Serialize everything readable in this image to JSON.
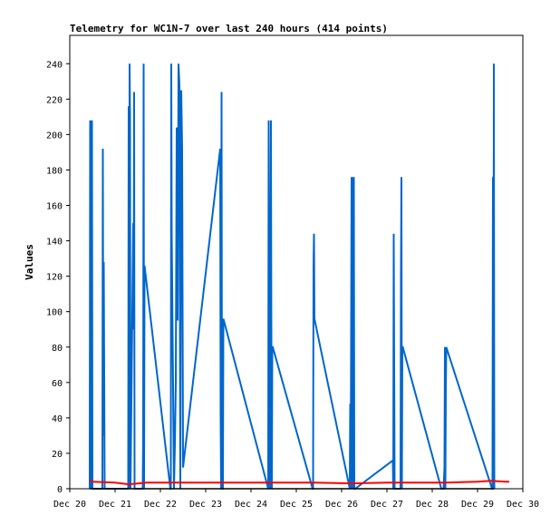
{
  "chart_data": {
    "type": "line",
    "title": "Telemetry for WC1N-7 over last 240 hours (414 points)",
    "xlabel": "",
    "ylabel": "Values",
    "x_ticks": [
      "Dec 20",
      "Dec 21",
      "Dec 22",
      "Dec 23",
      "Dec 24",
      "Dec 25",
      "Dec 26",
      "Dec 27",
      "Dec 28",
      "Dec 29",
      "Dec 30"
    ],
    "xlim": [
      0,
      10
    ],
    "x_unit": "days from Dec 20",
    "ylim": [
      0,
      256
    ],
    "y_ticks": [
      0,
      20,
      40,
      60,
      80,
      100,
      120,
      140,
      160,
      180,
      200,
      220,
      240
    ],
    "grid": false,
    "legend": "none",
    "series": [
      {
        "color": "#0066cc",
        "x": [
          0.44,
          0.45,
          0.46,
          0.47,
          0.48,
          0.49,
          0.5,
          0.72,
          0.73,
          0.74,
          0.75,
          0.77,
          1.29,
          1.3,
          1.31,
          1.32,
          1.33,
          1.34,
          1.4,
          1.41,
          1.42,
          1.43,
          1.61,
          1.62,
          1.63,
          1.64,
          1.65,
          2.22,
          2.23,
          2.24,
          2.25,
          2.3,
          2.32,
          2.34,
          2.36,
          2.38,
          2.4,
          2.42,
          2.44,
          2.46,
          2.48,
          2.5,
          3.32,
          3.33,
          3.34,
          3.35,
          3.36,
          3.38,
          3.39,
          4.38,
          4.39,
          4.4,
          4.41,
          4.42,
          4.44,
          4.45,
          4.46,
          4.47,
          4.48,
          5.36,
          5.37,
          5.38,
          5.39,
          5.4,
          6.18,
          6.19,
          6.2,
          6.22,
          6.23,
          6.25,
          6.26,
          6.27,
          6.28,
          6.29,
          6.3,
          7.13,
          7.14,
          7.15,
          7.16,
          7.17,
          7.3,
          7.31,
          7.32,
          7.33,
          7.34,
          7.35,
          8.2,
          8.22,
          8.25,
          8.27,
          8.28,
          8.29,
          8.3,
          8.31,
          9.32,
          9.33,
          9.34,
          9.35,
          9.36,
          9.37
        ],
        "y": [
          0,
          208,
          20,
          208,
          0,
          208,
          0,
          0,
          192,
          30,
          128,
          0,
          0,
          216,
          0,
          240,
          210,
          0,
          150,
          90,
          224,
          0,
          0,
          30,
          240,
          0,
          126,
          0,
          0,
          240,
          144,
          0,
          25,
          60,
          204,
          95,
          240,
          228,
          0,
          225,
          192,
          12,
          192,
          40,
          0,
          224,
          0,
          0,
          96,
          0,
          208,
          112,
          60,
          0,
          208,
          80,
          0,
          80,
          80,
          0,
          0,
          126,
          144,
          96,
          0,
          48,
          0,
          176,
          0,
          176,
          0,
          176,
          0,
          0,
          0,
          16,
          0,
          144,
          72,
          0,
          0,
          120,
          176,
          0,
          80,
          80,
          0,
          0,
          0,
          12,
          80,
          0,
          55,
          80,
          0,
          0,
          176,
          0,
          240,
          0
        ]
      },
      {
        "color": "#ff0000",
        "x": [
          0.44,
          0.5,
          1.0,
          1.3,
          1.7,
          2.3,
          3.3,
          4.4,
          5.4,
          6.2,
          7.0,
          7.3,
          8.3,
          9.0,
          9.3,
          9.6,
          9.7
        ],
        "y": [
          5,
          4,
          3.5,
          2.5,
          3.5,
          3.5,
          3.5,
          3.5,
          3.5,
          3,
          3.5,
          3.5,
          3.5,
          4,
          4.5,
          4,
          4
        ]
      }
    ]
  }
}
